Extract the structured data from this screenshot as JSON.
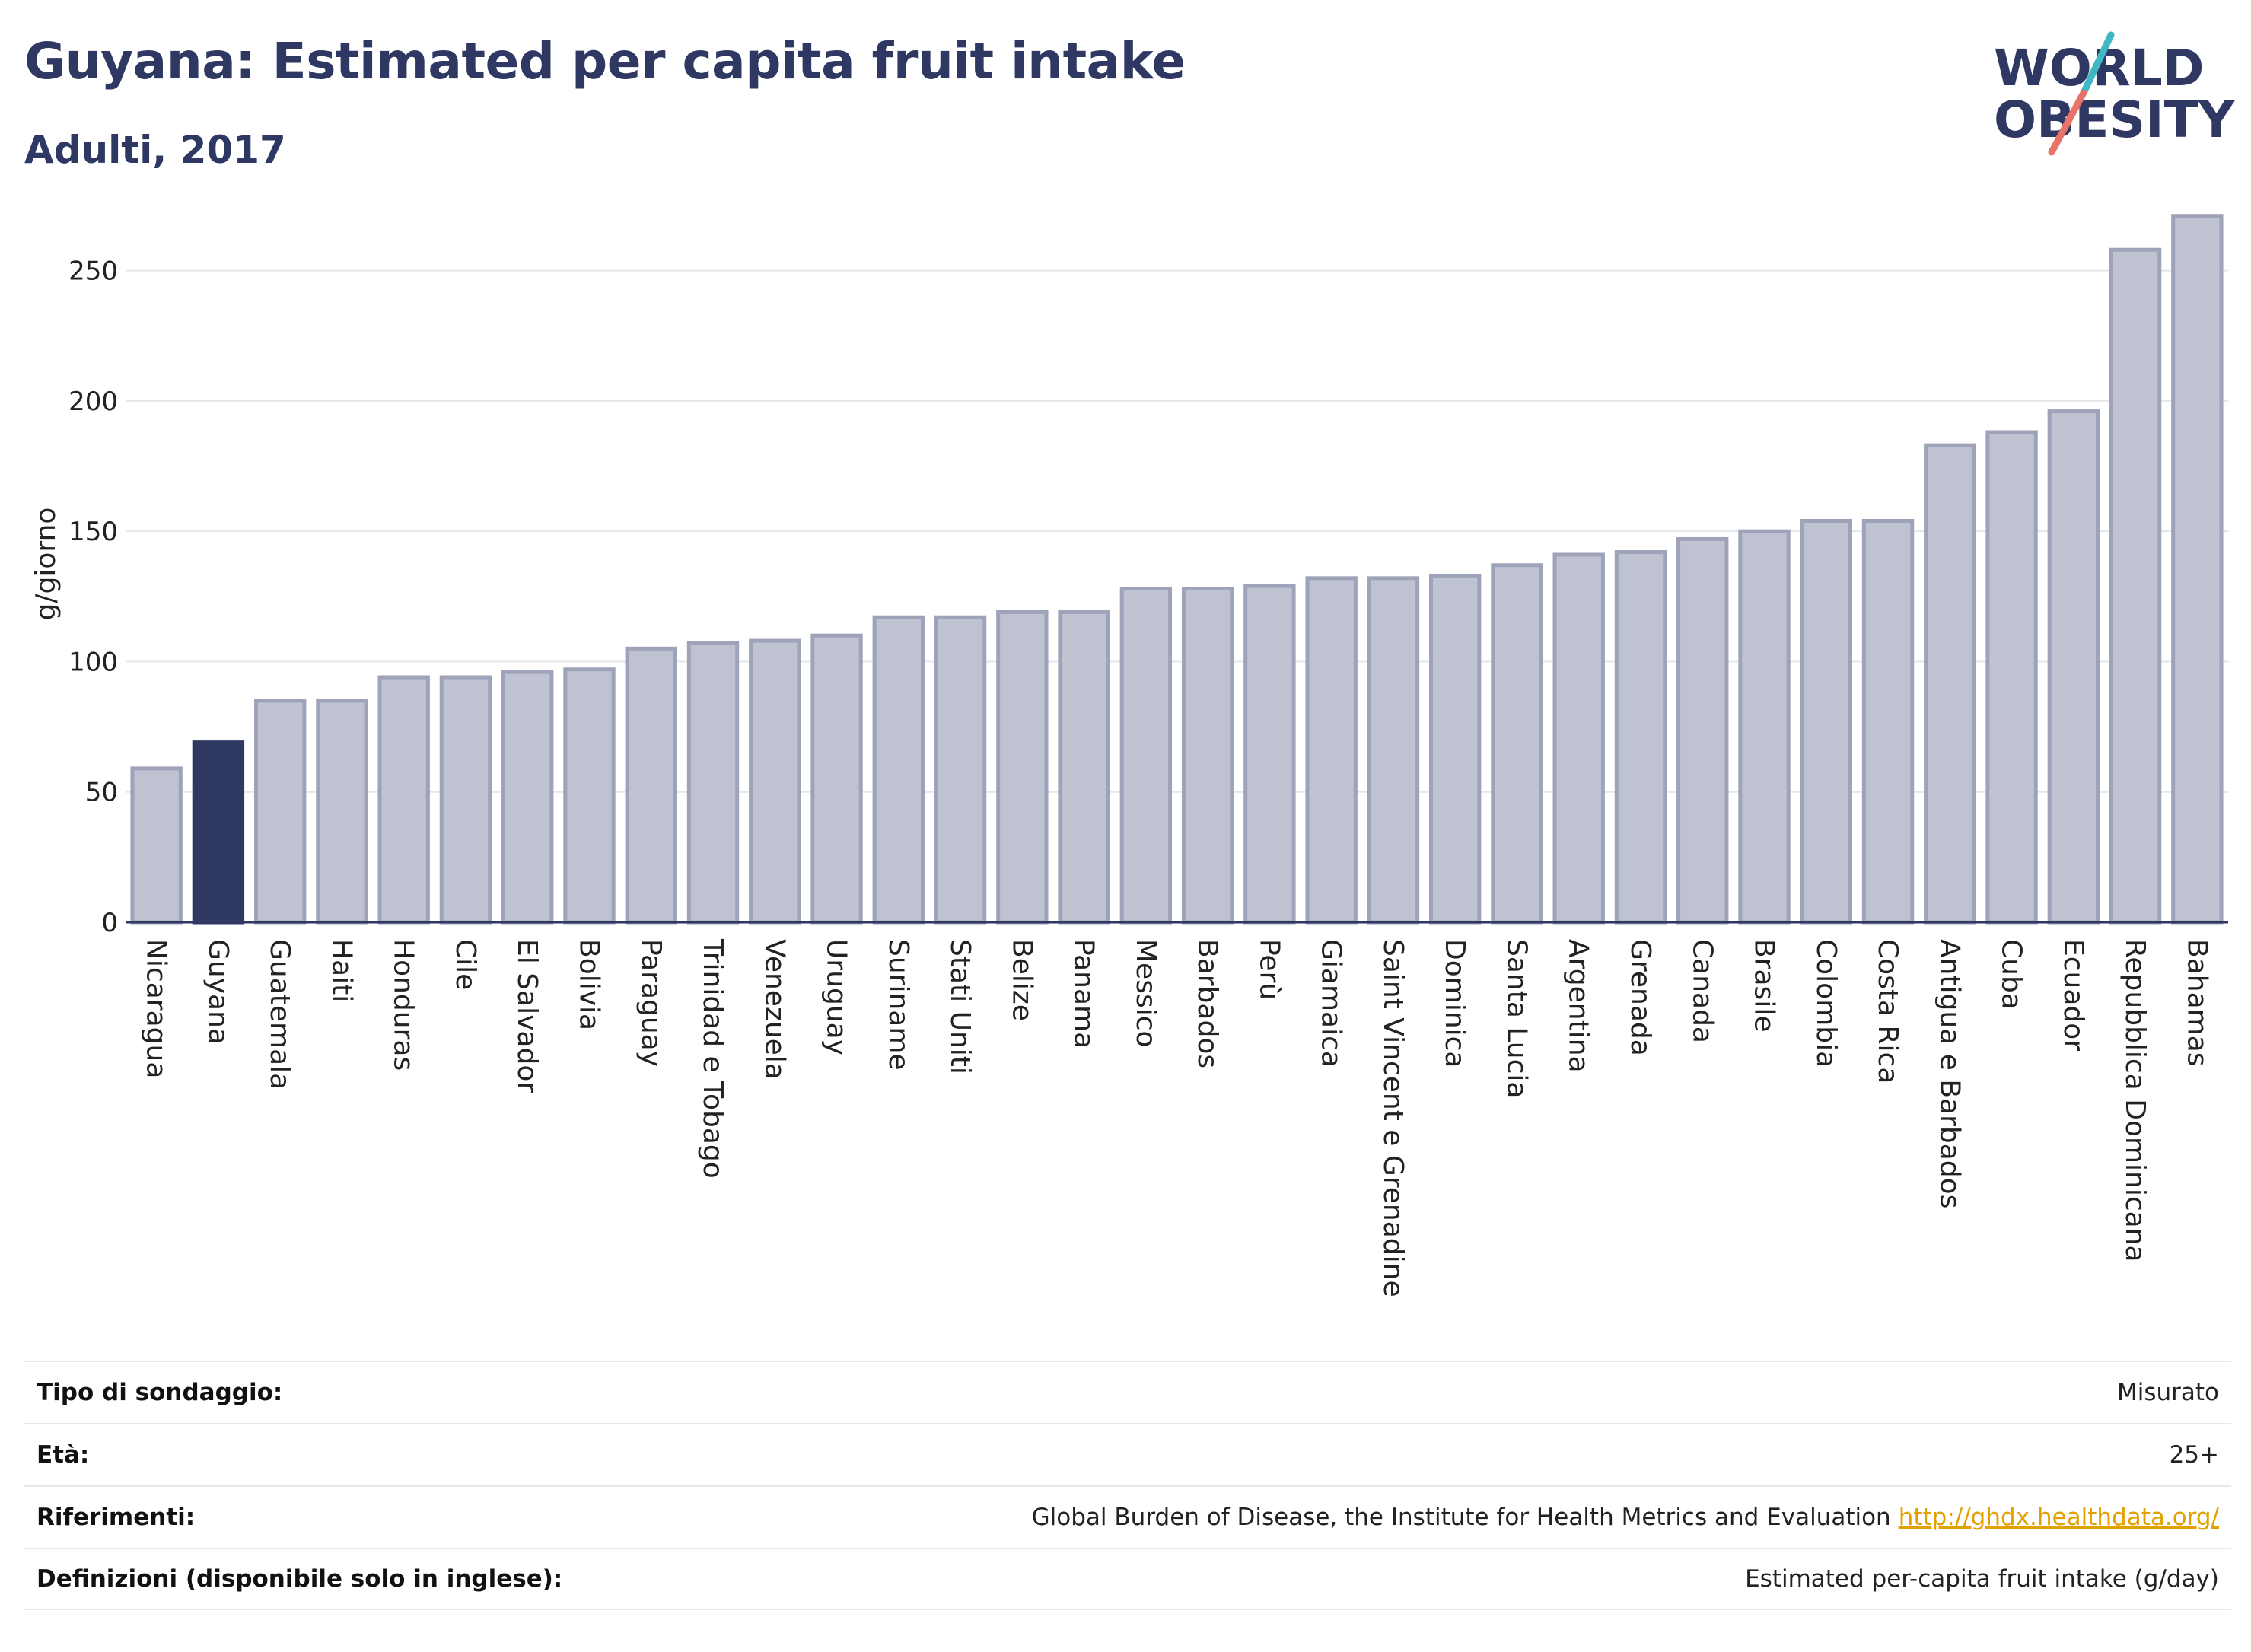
{
  "header": {
    "title": "Guyana: Estimated per capita fruit intake",
    "subtitle": "Adulti, 2017"
  },
  "logo": {
    "line1": "WORLD",
    "line2": "OBESITY",
    "accent_colors": [
      "#40b8c4",
      "#e8736a"
    ]
  },
  "colors": {
    "bar": "#bfc3d1",
    "bar_border": "#9ea3b9",
    "highlight": "#2e3862",
    "grid": "#e4e6ea",
    "axis": "#2e3862",
    "text": "#2e3862"
  },
  "chart_data": {
    "type": "bar",
    "title": "Guyana: Estimated per capita fruit intake",
    "subtitle": "Adulti, 2017",
    "xlabel": "",
    "ylabel": "g/giorno",
    "ylim": [
      0,
      275
    ],
    "yticks": [
      0,
      50,
      100,
      150,
      200,
      250
    ],
    "grid": true,
    "highlight": "Guyana",
    "categories": [
      "Nicaragua",
      "Guyana",
      "Guatemala",
      "Haiti",
      "Honduras",
      "Cile",
      "El Salvador",
      "Bolivia",
      "Paraguay",
      "Trinidad e Tobago",
      "Venezuela",
      "Uruguay",
      "Suriname",
      "Stati Uniti",
      "Belize",
      "Panama",
      "Messico",
      "Barbados",
      "Perù",
      "Giamaica",
      "Saint Vincent e Grenadine",
      "Dominica",
      "Santa Lucia",
      "Argentina",
      "Grenada",
      "Canada",
      "Brasile",
      "Colombia",
      "Costa Rica",
      "Antigua e Barbados",
      "Cuba",
      "Ecuador",
      "Repubblica Dominicana",
      "Bahamas"
    ],
    "values": [
      59,
      69,
      85,
      85,
      94,
      94,
      96,
      97,
      105,
      107,
      108,
      110,
      117,
      117,
      119,
      119,
      128,
      128,
      129,
      132,
      132,
      133,
      137,
      141,
      142,
      147,
      150,
      154,
      154,
      183,
      188,
      196,
      258,
      271
    ]
  },
  "info": [
    {
      "label": "Tipo di sondaggio:",
      "value": "Misurato"
    },
    {
      "label": "Età:",
      "value": "25+"
    },
    {
      "label": "Riferimenti:",
      "value": "Global Burden of Disease, the Institute for Health Metrics and Evaluation",
      "link": "http://ghdx.healthdata.org/"
    },
    {
      "label": "Definizioni (disponibile solo in inglese):",
      "value": "Estimated per-capita fruit intake (g/day)"
    }
  ]
}
